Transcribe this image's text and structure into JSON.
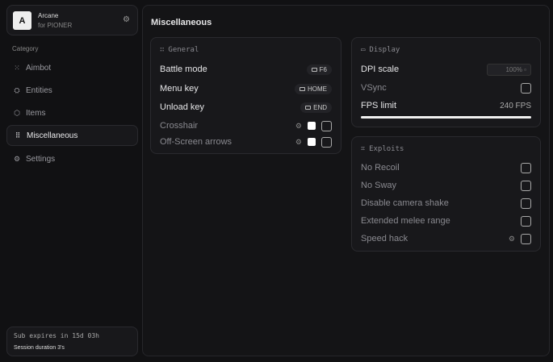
{
  "app": {
    "logo_letter": "A",
    "name": "Arcane",
    "subtitle": "for PIONER"
  },
  "sidebar": {
    "category_label": "Category",
    "items": [
      {
        "label": "Aimbot",
        "icon": "crosshair-dots-icon",
        "active": false
      },
      {
        "label": "Entities",
        "icon": "entities-icon",
        "active": false
      },
      {
        "label": "Items",
        "icon": "box-icon",
        "active": false
      },
      {
        "label": "Miscellaneous",
        "icon": "misc-icon",
        "active": true
      },
      {
        "label": "Settings",
        "icon": "gear-icon",
        "active": false
      }
    ]
  },
  "footer": {
    "subscription": "Sub expires in 15d 03h",
    "session": "Session duration 3's"
  },
  "main": {
    "title": "Miscellaneous",
    "general": {
      "title": "General",
      "rows": [
        {
          "label": "Battle mode",
          "key": "F6"
        },
        {
          "label": "Menu key",
          "key": "HOME"
        },
        {
          "label": "Unload key",
          "key": "END"
        }
      ],
      "toggles": [
        {
          "label": "Crosshair",
          "color": "#ffffff",
          "checked": false
        },
        {
          "label": "Off-Screen arrows",
          "color": "#ffffff",
          "checked": false
        }
      ]
    },
    "display": {
      "title": "Display",
      "dpi_label": "DPI scale",
      "dpi_value": "100%",
      "vsync_label": "VSync",
      "vsync": false,
      "fps_label": "FPS limit",
      "fps_value": "240 FPS",
      "fps_fill_percent": 100
    },
    "exploits": {
      "title": "Exploits",
      "items": [
        {
          "label": "No Recoil",
          "checked": false
        },
        {
          "label": "No Sway",
          "checked": false
        },
        {
          "label": "Disable camera shake",
          "checked": false
        },
        {
          "label": "Extended melee range",
          "checked": false
        },
        {
          "label": "Speed hack",
          "checked": false,
          "gear": true
        }
      ]
    }
  }
}
